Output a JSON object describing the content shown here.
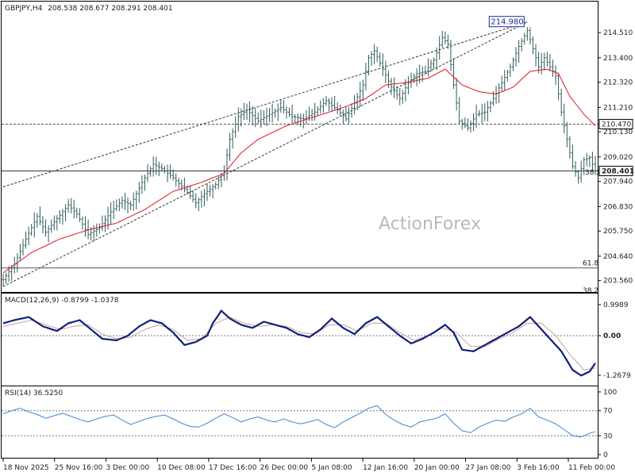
{
  "chart_data": [
    {
      "type": "ohlc",
      "title": "GBPJPY,H4",
      "ohlc_header": "208.538 208.677 208.291 208.401",
      "y_ticks": [
        "214.510",
        "213.400",
        "212.320",
        "211.210",
        "210.130",
        "209.020",
        "207.940",
        "206.830",
        "205.750",
        "204.640",
        "203.560"
      ],
      "ylim": [
        203.2,
        215.6
      ],
      "x_labels": [
        "18 Nov 2025",
        "25 Nov 16:00",
        "3 Dec 00:00",
        "10 Dec 08:00",
        "17 Dec 16:00",
        "26 Dec 00:00",
        "5 Jan 08:00",
        "12 Jan 16:00",
        "20 Jan 00:00",
        "27 Jan 08:00",
        "3 Feb 16:00",
        "11 Feb 00:00"
      ],
      "price_path": [
        [
          0,
          203.6
        ],
        [
          4,
          204.3
        ],
        [
          8,
          205.4
        ],
        [
          12,
          206.4
        ],
        [
          15,
          205.7
        ],
        [
          19,
          206.3
        ],
        [
          23,
          206.9
        ],
        [
          26,
          206.5
        ],
        [
          30,
          205.6
        ],
        [
          34,
          205.9
        ],
        [
          38,
          206.6
        ],
        [
          42,
          207.1
        ],
        [
          45,
          206.9
        ],
        [
          49,
          207.9
        ],
        [
          53,
          208.7
        ],
        [
          56,
          208.5
        ],
        [
          60,
          208.1
        ],
        [
          64,
          207.6
        ],
        [
          68,
          207.0
        ],
        [
          71,
          207.4
        ],
        [
          75,
          207.8
        ],
        [
          78,
          208.4
        ],
        [
          80,
          209.8
        ],
        [
          83,
          210.8
        ],
        [
          86,
          211.1
        ],
        [
          90,
          210.6
        ],
        [
          94,
          210.9
        ],
        [
          98,
          211.2
        ],
        [
          102,
          210.8
        ],
        [
          106,
          210.7
        ],
        [
          110,
          211.0
        ],
        [
          114,
          211.5
        ],
        [
          118,
          211.1
        ],
        [
          121,
          210.7
        ],
        [
          124,
          211.4
        ],
        [
          127,
          212.2
        ],
        [
          129,
          213.4
        ],
        [
          131,
          213.7
        ],
        [
          134,
          212.9
        ],
        [
          137,
          212.1
        ],
        [
          140,
          211.6
        ],
        [
          143,
          212.3
        ],
        [
          146,
          212.7
        ],
        [
          149,
          212.8
        ],
        [
          152,
          213.3
        ],
        [
          155,
          214.3
        ],
        [
          157,
          214.0
        ],
        [
          159,
          212.2
        ],
        [
          161,
          210.6
        ],
        [
          164,
          210.3
        ],
        [
          167,
          210.9
        ],
        [
          170,
          211.0
        ],
        [
          173,
          211.6
        ],
        [
          176,
          212.3
        ],
        [
          179,
          213.0
        ],
        [
          182,
          213.9
        ],
        [
          185,
          214.6
        ],
        [
          187,
          213.8
        ],
        [
          189,
          213.0
        ],
        [
          191,
          213.4
        ],
        [
          193,
          213.0
        ],
        [
          195,
          212.6
        ],
        [
          197,
          211.0
        ],
        [
          199,
          209.8
        ],
        [
          201,
          208.6
        ],
        [
          203,
          208.1
        ],
        [
          205,
          208.9
        ],
        [
          207,
          209.0
        ],
        [
          209,
          208.401
        ]
      ],
      "ma_path": [
        [
          0,
          203.9
        ],
        [
          10,
          204.8
        ],
        [
          20,
          205.4
        ],
        [
          30,
          205.8
        ],
        [
          40,
          206.1
        ],
        [
          50,
          206.7
        ],
        [
          60,
          207.5
        ],
        [
          70,
          207.9
        ],
        [
          78,
          208.3
        ],
        [
          84,
          209.2
        ],
        [
          90,
          209.8
        ],
        [
          100,
          210.4
        ],
        [
          110,
          210.8
        ],
        [
          120,
          211.2
        ],
        [
          128,
          211.6
        ],
        [
          135,
          212.2
        ],
        [
          142,
          212.3
        ],
        [
          150,
          212.5
        ],
        [
          156,
          212.9
        ],
        [
          162,
          212.2
        ],
        [
          168,
          211.9
        ],
        [
          174,
          211.8
        ],
        [
          180,
          212.1
        ],
        [
          186,
          212.8
        ],
        [
          192,
          212.9
        ],
        [
          196,
          212.7
        ],
        [
          200,
          211.7
        ],
        [
          205,
          210.9
        ],
        [
          209,
          210.4
        ]
      ],
      "channel_upper": [
        [
          0,
          207.7
        ],
        [
          185,
          214.98
        ]
      ],
      "channel_lower": [
        [
          0,
          203.3
        ],
        [
          185,
          214.98
        ]
      ],
      "high_label": "214.980",
      "hlines": [
        {
          "value": 210.47,
          "label": "210.470",
          "style": "dashed"
        },
        {
          "value": 208.401,
          "label": "208.401",
          "style": "solid",
          "dark": true
        },
        {
          "value": 204.12,
          "style": "solid"
        }
      ],
      "fib_labels": [
        "38.2",
        "61.8",
        "38.2"
      ],
      "watermark": "ActionForex",
      "n_bars": 210
    },
    {
      "type": "line",
      "title": "MACD(12,26,9) -0.8799 -1.0378",
      "y_ticks": [
        "0.9989",
        "0.00",
        "-1.2679"
      ],
      "ylim": [
        -1.5,
        1.15
      ],
      "series": [
        {
          "color": "#10207a",
          "values": [
            [
              0,
              0.4
            ],
            [
              4,
              0.5
            ],
            [
              9,
              0.6
            ],
            [
              14,
              0.3
            ],
            [
              19,
              0.15
            ],
            [
              23,
              0.4
            ],
            [
              27,
              0.5
            ],
            [
              31,
              0.2
            ],
            [
              35,
              -0.1
            ],
            [
              40,
              -0.15
            ],
            [
              44,
              0.0
            ],
            [
              48,
              0.3
            ],
            [
              52,
              0.5
            ],
            [
              56,
              0.4
            ],
            [
              60,
              0.1
            ],
            [
              64,
              -0.3
            ],
            [
              68,
              -0.2
            ],
            [
              72,
              0.0
            ],
            [
              74,
              0.4
            ],
            [
              77,
              0.8
            ],
            [
              80,
              0.55
            ],
            [
              84,
              0.35
            ],
            [
              88,
              0.25
            ],
            [
              92,
              0.45
            ],
            [
              96,
              0.35
            ],
            [
              100,
              0.25
            ],
            [
              104,
              0.05
            ],
            [
              108,
              -0.05
            ],
            [
              112,
              0.2
            ],
            [
              116,
              0.55
            ],
            [
              120,
              0.25
            ],
            [
              124,
              0.05
            ],
            [
              128,
              0.4
            ],
            [
              132,
              0.6
            ],
            [
              136,
              0.3
            ],
            [
              140,
              0.0
            ],
            [
              144,
              -0.25
            ],
            [
              148,
              -0.1
            ],
            [
              152,
              0.1
            ],
            [
              156,
              0.35
            ],
            [
              159,
              0.1
            ],
            [
              162,
              -0.45
            ],
            [
              166,
              -0.5
            ],
            [
              170,
              -0.3
            ],
            [
              174,
              -0.1
            ],
            [
              178,
              0.1
            ],
            [
              182,
              0.3
            ],
            [
              186,
              0.6
            ],
            [
              189,
              0.3
            ],
            [
              193,
              -0.1
            ],
            [
              197,
              -0.5
            ],
            [
              201,
              -1.1
            ],
            [
              204,
              -1.28
            ],
            [
              207,
              -1.15
            ],
            [
              209,
              -0.88
            ]
          ]
        },
        {
          "color": "#c8a0a0",
          "values": [
            [
              0,
              0.3
            ],
            [
              5,
              0.4
            ],
            [
              10,
              0.5
            ],
            [
              15,
              0.35
            ],
            [
              20,
              0.2
            ],
            [
              25,
              0.3
            ],
            [
              30,
              0.35
            ],
            [
              35,
              0.05
            ],
            [
              40,
              -0.1
            ],
            [
              45,
              -0.05
            ],
            [
              50,
              0.2
            ],
            [
              55,
              0.35
            ],
            [
              60,
              0.2
            ],
            [
              65,
              -0.15
            ],
            [
              70,
              -0.1
            ],
            [
              75,
              0.4
            ],
            [
              80,
              0.6
            ],
            [
              85,
              0.4
            ],
            [
              90,
              0.3
            ],
            [
              95,
              0.35
            ],
            [
              100,
              0.3
            ],
            [
              105,
              0.1
            ],
            [
              110,
              0.05
            ],
            [
              115,
              0.35
            ],
            [
              120,
              0.35
            ],
            [
              125,
              0.15
            ],
            [
              130,
              0.4
            ],
            [
              135,
              0.4
            ],
            [
              140,
              0.1
            ],
            [
              145,
              -0.15
            ],
            [
              150,
              0.0
            ],
            [
              155,
              0.25
            ],
            [
              160,
              0.1
            ],
            [
              165,
              -0.35
            ],
            [
              170,
              -0.35
            ],
            [
              175,
              -0.1
            ],
            [
              180,
              0.1
            ],
            [
              185,
              0.4
            ],
            [
              190,
              0.4
            ],
            [
              195,
              0.0
            ],
            [
              200,
              -0.6
            ],
            [
              205,
              -1.1
            ],
            [
              209,
              -1.04
            ]
          ]
        }
      ]
    },
    {
      "type": "line",
      "title": "RSI(14) 36.5250",
      "y_ticks": [
        "100",
        "70",
        "30",
        "0"
      ],
      "ylim": [
        0,
        100
      ],
      "series": [
        {
          "color": "#3a86d4",
          "values": [
            [
              0,
              65
            ],
            [
              3,
              70
            ],
            [
              6,
              74
            ],
            [
              9,
              68
            ],
            [
              12,
              64
            ],
            [
              15,
              58
            ],
            [
              18,
              62
            ],
            [
              21,
              66
            ],
            [
              24,
              61
            ],
            [
              27,
              56
            ],
            [
              30,
              52
            ],
            [
              33,
              57
            ],
            [
              36,
              61
            ],
            [
              39,
              63
            ],
            [
              42,
              55
            ],
            [
              45,
              48
            ],
            [
              48,
              53
            ],
            [
              51,
              58
            ],
            [
              54,
              61
            ],
            [
              57,
              63
            ],
            [
              60,
              57
            ],
            [
              63,
              50
            ],
            [
              66,
              45
            ],
            [
              69,
              44
            ],
            [
              72,
              50
            ],
            [
              75,
              58
            ],
            [
              78,
              65
            ],
            [
              81,
              59
            ],
            [
              84,
              52
            ],
            [
              87,
              57
            ],
            [
              90,
              60
            ],
            [
              93,
              55
            ],
            [
              96,
              52
            ],
            [
              99,
              57
            ],
            [
              102,
              52
            ],
            [
              105,
              49
            ],
            [
              108,
              52
            ],
            [
              111,
              56
            ],
            [
              114,
              48
            ],
            [
              117,
              43
            ],
            [
              120,
              52
            ],
            [
              123,
              59
            ],
            [
              126,
              66
            ],
            [
              129,
              74
            ],
            [
              132,
              78
            ],
            [
              135,
              64
            ],
            [
              138,
              55
            ],
            [
              141,
              48
            ],
            [
              144,
              44
            ],
            [
              147,
              52
            ],
            [
              150,
              55
            ],
            [
              153,
              58
            ],
            [
              156,
              65
            ],
            [
              159,
              50
            ],
            [
              162,
              38
            ],
            [
              165,
              35
            ],
            [
              168,
              44
            ],
            [
              171,
              50
            ],
            [
              174,
              55
            ],
            [
              177,
              53
            ],
            [
              180,
              60
            ],
            [
              183,
              65
            ],
            [
              186,
              74
            ],
            [
              189,
              60
            ],
            [
              192,
              55
            ],
            [
              195,
              49
            ],
            [
              198,
              40
            ],
            [
              201,
              30
            ],
            [
              204,
              28
            ],
            [
              207,
              34
            ],
            [
              209,
              36.5
            ]
          ]
        }
      ],
      "levels": [
        70,
        30
      ]
    }
  ]
}
